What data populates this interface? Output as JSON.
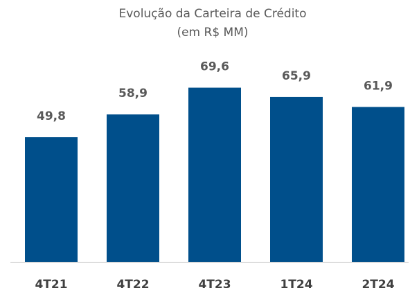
{
  "chart_data": {
    "type": "bar",
    "title": "Evolução da Carteira de Crédito",
    "subtitle": "(em R$ MM)",
    "categories": [
      "4T21",
      "4T22",
      "4T23",
      "1T24",
      "2T24"
    ],
    "values": [
      49.8,
      58.9,
      69.6,
      65.9,
      61.9
    ],
    "value_labels": [
      "49,8",
      "58,9",
      "69,6",
      "65,9",
      "61,9"
    ],
    "color": "#004f8b",
    "ylim": [
      0,
      80
    ]
  }
}
